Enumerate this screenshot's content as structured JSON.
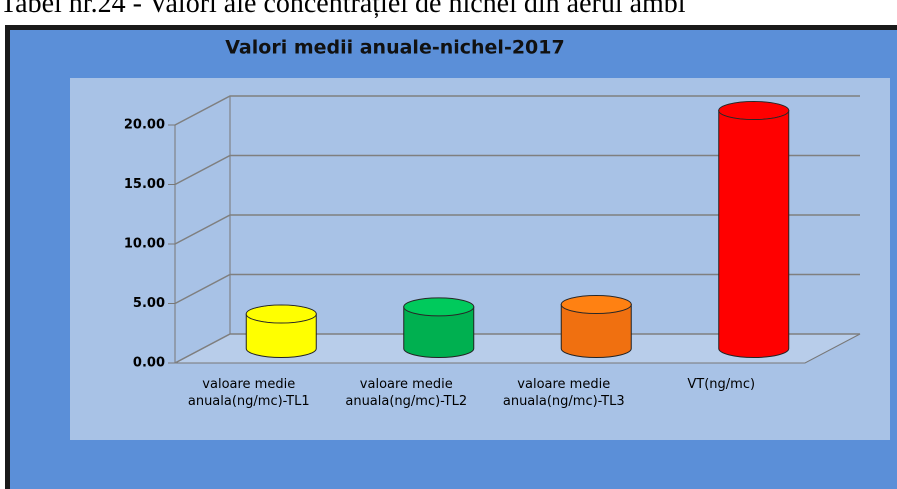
{
  "caption": "Tabel nr.24 - Valori ale concentrației de nichel din aerul ambi",
  "chart_data": {
    "type": "bar3d",
    "title": "Valori medii anuale-nichel-2017",
    "categories": [
      "valoare medie anuala(ng/mc)-TL1",
      "valoare medie anuala(ng/mc)-TL2",
      "valoare medie anuala(ng/mc)-TL3",
      "VT(ng/mc)"
    ],
    "values": [
      2.9,
      3.5,
      3.7,
      20
    ],
    "colors": [
      "#ffff00",
      "#00b050",
      "#f07010",
      "#ff0000"
    ],
    "ylim": [
      0,
      20
    ],
    "yticks": [
      {
        "value": 0,
        "label": "0.00"
      },
      {
        "value": 5,
        "label": "5.00"
      },
      {
        "value": 10,
        "label": "10.00"
      },
      {
        "value": 15,
        "label": "15.00"
      },
      {
        "value": 20,
        "label": "20.00"
      }
    ],
    "grid": true
  }
}
